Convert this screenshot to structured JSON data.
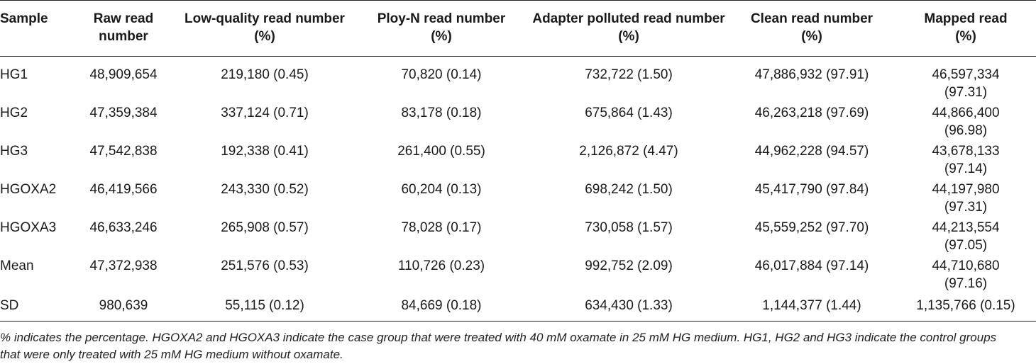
{
  "table": {
    "headers": [
      [
        "Sample"
      ],
      [
        "Raw read",
        "number"
      ],
      [
        "Low-quality read number",
        "(%)"
      ],
      [
        "Ploy-N read number",
        "(%)"
      ],
      [
        "Adapter polluted read number",
        "(%)"
      ],
      [
        "Clean read number",
        "(%)"
      ],
      [
        "Mapped read",
        "(%)"
      ]
    ],
    "rows": [
      [
        "HG1",
        "48,909,654",
        "219,180 (0.45)",
        "70,820 (0.14)",
        "732,722 (1.50)",
        "47,886,932 (97.91)",
        "46,597,334",
        "(97.31)"
      ],
      [
        "HG2",
        "47,359,384",
        "337,124 (0.71)",
        "83,178 (0.18)",
        "675,864 (1.43)",
        "46,263,218 (97.69)",
        "44,866,400",
        "(96.98)"
      ],
      [
        "HG3",
        "47,542,838",
        "192,338 (0.41)",
        "261,400 (0.55)",
        "2,126,872 (4.47)",
        "44,962,228 (94.57)",
        "43,678,133",
        "(97.14)"
      ],
      [
        "HGOXA2",
        "46,419,566",
        "243,330 (0.52)",
        "60,204 (0.13)",
        "698,242 (1.50)",
        "45,417,790 (97.84)",
        "44,197,980",
        "(97.31)"
      ],
      [
        "HGOXA3",
        "46,633,246",
        "265,908 (0.57)",
        "78,028 (0.17)",
        "730,058 (1.57)",
        "45,559,252 (97.70)",
        "44,213,554",
        "(97.05)"
      ],
      [
        "Mean",
        "47,372,938",
        "251,576 (0.53)",
        "110,726 (0.23)",
        "992,752 (2.09)",
        "46,017,884 (97.14)",
        "44,710,680",
        "(97.16)"
      ],
      [
        "SD",
        "980,639",
        "55,115 (0.12)",
        "84,669 (0.18)",
        "634,430 (1.33)",
        "1,144,377 (1.44)",
        "1,135,766 (0.15)",
        ""
      ]
    ]
  },
  "footnote": {
    "line1": "% indicates the percentage. HGOXA2 and HGOXA3 indicate the case group that were treated with 40 mM oxamate in 25 mM HG medium. HG1, HG2 and HG3 indicate the control groups",
    "line2": "that were only treated with 25 mM HG medium without oxamate."
  }
}
